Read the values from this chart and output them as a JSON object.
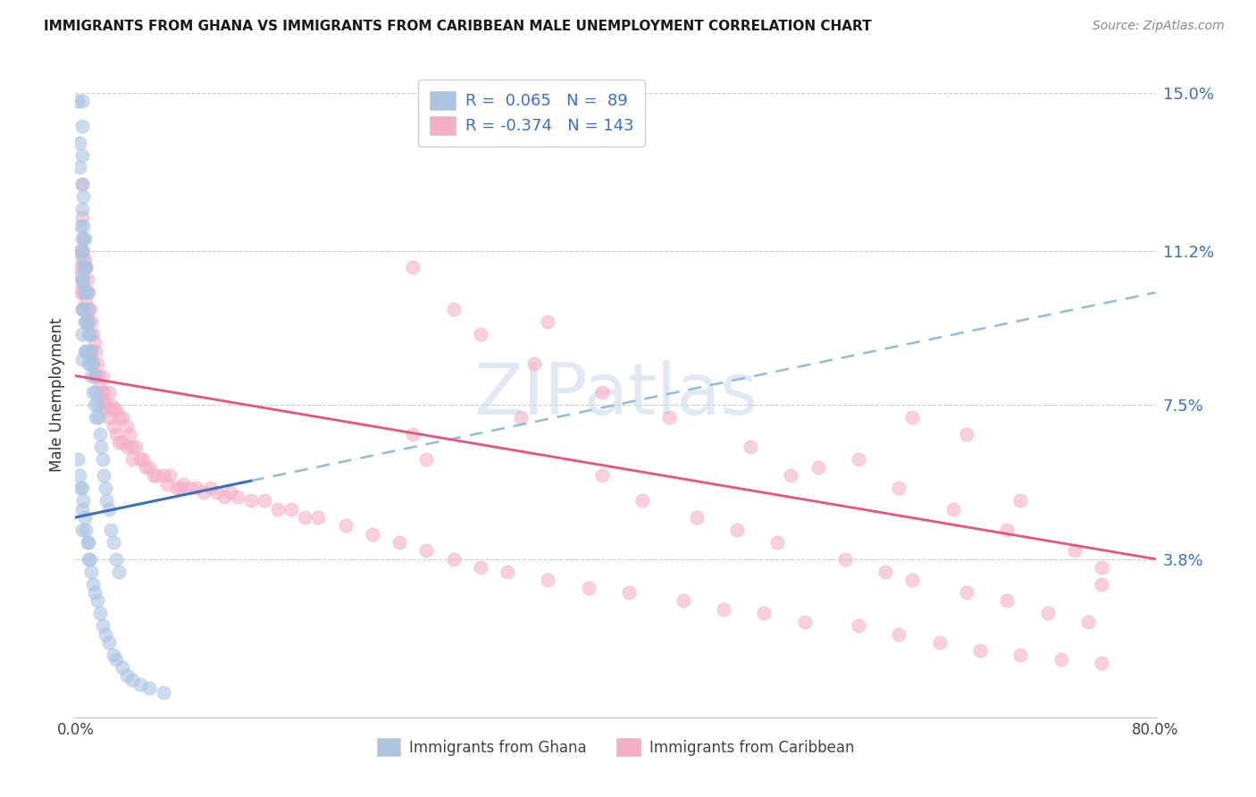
{
  "title": "IMMIGRANTS FROM GHANA VS IMMIGRANTS FROM CARIBBEAN MALE UNEMPLOYMENT CORRELATION CHART",
  "source": "Source: ZipAtlas.com",
  "ylabel": "Male Unemployment",
  "xlim": [
    0.0,
    0.8
  ],
  "ylim": [
    0.0,
    0.155
  ],
  "ytick_labels": [
    "3.8%",
    "7.5%",
    "11.2%",
    "15.0%"
  ],
  "ytick_positions": [
    0.038,
    0.075,
    0.112,
    0.15
  ],
  "ghana_R": 0.065,
  "ghana_N": 89,
  "caribbean_R": -0.374,
  "caribbean_N": 143,
  "ghana_color": "#aac4e2",
  "caribbean_color": "#f5afc5",
  "ghana_solid_line_color": "#3a6fbd",
  "caribbean_line_color": "#e8547a",
  "ghana_dashed_line_color": "#90bce0",
  "watermark_text": "ZIPatlas",
  "ghana_line_x0": 0.0,
  "ghana_line_y0": 0.048,
  "ghana_line_x1": 0.8,
  "ghana_line_y1": 0.102,
  "carib_line_x0": 0.0,
  "carib_line_y0": 0.082,
  "carib_line_x1": 0.8,
  "carib_line_y1": 0.038,
  "ghana_scatter_x": [
    0.002,
    0.003,
    0.003,
    0.004,
    0.004,
    0.004,
    0.005,
    0.005,
    0.005,
    0.005,
    0.005,
    0.005,
    0.005,
    0.005,
    0.005,
    0.005,
    0.005,
    0.006,
    0.006,
    0.006,
    0.006,
    0.006,
    0.007,
    0.007,
    0.007,
    0.007,
    0.007,
    0.008,
    0.008,
    0.008,
    0.008,
    0.009,
    0.009,
    0.009,
    0.01,
    0.01,
    0.01,
    0.011,
    0.011,
    0.012,
    0.012,
    0.013,
    0.013,
    0.014,
    0.014,
    0.015,
    0.015,
    0.016,
    0.017,
    0.018,
    0.019,
    0.02,
    0.021,
    0.022,
    0.023,
    0.025,
    0.026,
    0.028,
    0.03,
    0.032,
    0.002,
    0.003,
    0.004,
    0.005,
    0.005,
    0.005,
    0.006,
    0.007,
    0.008,
    0.009,
    0.01,
    0.01,
    0.011,
    0.012,
    0.013,
    0.014,
    0.016,
    0.018,
    0.02,
    0.022,
    0.025,
    0.028,
    0.03,
    0.035,
    0.038,
    0.042,
    0.048,
    0.055,
    0.065
  ],
  "ghana_scatter_y": [
    0.148,
    0.138,
    0.132,
    0.118,
    0.112,
    0.106,
    0.148,
    0.142,
    0.135,
    0.128,
    0.122,
    0.115,
    0.11,
    0.104,
    0.098,
    0.092,
    0.086,
    0.125,
    0.118,
    0.112,
    0.105,
    0.098,
    0.115,
    0.108,
    0.102,
    0.095,
    0.088,
    0.108,
    0.102,
    0.095,
    0.088,
    0.102,
    0.095,
    0.088,
    0.098,
    0.092,
    0.085,
    0.092,
    0.085,
    0.088,
    0.082,
    0.085,
    0.078,
    0.082,
    0.075,
    0.078,
    0.072,
    0.075,
    0.072,
    0.068,
    0.065,
    0.062,
    0.058,
    0.055,
    0.052,
    0.05,
    0.045,
    0.042,
    0.038,
    0.035,
    0.062,
    0.058,
    0.055,
    0.055,
    0.05,
    0.045,
    0.052,
    0.048,
    0.045,
    0.042,
    0.042,
    0.038,
    0.038,
    0.035,
    0.032,
    0.03,
    0.028,
    0.025,
    0.022,
    0.02,
    0.018,
    0.015,
    0.014,
    0.012,
    0.01,
    0.009,
    0.008,
    0.007,
    0.006
  ],
  "carib_scatter_x": [
    0.003,
    0.004,
    0.004,
    0.005,
    0.005,
    0.005,
    0.005,
    0.005,
    0.006,
    0.006,
    0.006,
    0.007,
    0.007,
    0.008,
    0.008,
    0.009,
    0.009,
    0.01,
    0.01,
    0.011,
    0.012,
    0.012,
    0.013,
    0.013,
    0.014,
    0.015,
    0.015,
    0.016,
    0.017,
    0.018,
    0.019,
    0.02,
    0.02,
    0.021,
    0.022,
    0.023,
    0.025,
    0.025,
    0.026,
    0.028,
    0.028,
    0.03,
    0.03,
    0.032,
    0.032,
    0.035,
    0.035,
    0.038,
    0.038,
    0.04,
    0.042,
    0.042,
    0.045,
    0.048,
    0.05,
    0.052,
    0.055,
    0.058,
    0.06,
    0.065,
    0.068,
    0.07,
    0.075,
    0.078,
    0.08,
    0.085,
    0.09,
    0.095,
    0.1,
    0.105,
    0.11,
    0.115,
    0.12,
    0.13,
    0.14,
    0.15,
    0.16,
    0.17,
    0.18,
    0.2,
    0.22,
    0.24,
    0.26,
    0.28,
    0.3,
    0.32,
    0.35,
    0.38,
    0.41,
    0.45,
    0.48,
    0.51,
    0.54,
    0.58,
    0.61,
    0.64,
    0.67,
    0.7,
    0.73,
    0.76,
    0.25,
    0.26,
    0.33,
    0.35,
    0.39,
    0.42,
    0.46,
    0.49,
    0.52,
    0.57,
    0.6,
    0.62,
    0.66,
    0.69,
    0.72,
    0.75,
    0.25,
    0.28,
    0.3,
    0.34,
    0.39,
    0.44,
    0.5,
    0.55,
    0.61,
    0.65,
    0.69,
    0.74,
    0.76,
    0.76,
    0.7,
    0.66,
    0.62,
    0.58,
    0.53
  ],
  "carib_scatter_y": [
    0.112,
    0.108,
    0.102,
    0.128,
    0.12,
    0.112,
    0.105,
    0.098,
    0.115,
    0.108,
    0.102,
    0.11,
    0.102,
    0.108,
    0.1,
    0.105,
    0.098,
    0.102,
    0.095,
    0.098,
    0.095,
    0.088,
    0.092,
    0.085,
    0.09,
    0.088,
    0.082,
    0.085,
    0.082,
    0.08,
    0.078,
    0.082,
    0.076,
    0.078,
    0.075,
    0.074,
    0.078,
    0.072,
    0.075,
    0.074,
    0.07,
    0.074,
    0.068,
    0.072,
    0.066,
    0.072,
    0.066,
    0.07,
    0.065,
    0.068,
    0.065,
    0.062,
    0.065,
    0.062,
    0.062,
    0.06,
    0.06,
    0.058,
    0.058,
    0.058,
    0.056,
    0.058,
    0.055,
    0.055,
    0.056,
    0.055,
    0.055,
    0.054,
    0.055,
    0.054,
    0.053,
    0.054,
    0.053,
    0.052,
    0.052,
    0.05,
    0.05,
    0.048,
    0.048,
    0.046,
    0.044,
    0.042,
    0.04,
    0.038,
    0.036,
    0.035,
    0.033,
    0.031,
    0.03,
    0.028,
    0.026,
    0.025,
    0.023,
    0.022,
    0.02,
    0.018,
    0.016,
    0.015,
    0.014,
    0.013,
    0.068,
    0.062,
    0.072,
    0.095,
    0.058,
    0.052,
    0.048,
    0.045,
    0.042,
    0.038,
    0.035,
    0.033,
    0.03,
    0.028,
    0.025,
    0.023,
    0.108,
    0.098,
    0.092,
    0.085,
    0.078,
    0.072,
    0.065,
    0.06,
    0.055,
    0.05,
    0.045,
    0.04,
    0.036,
    0.032,
    0.052,
    0.068,
    0.072,
    0.062,
    0.058
  ]
}
